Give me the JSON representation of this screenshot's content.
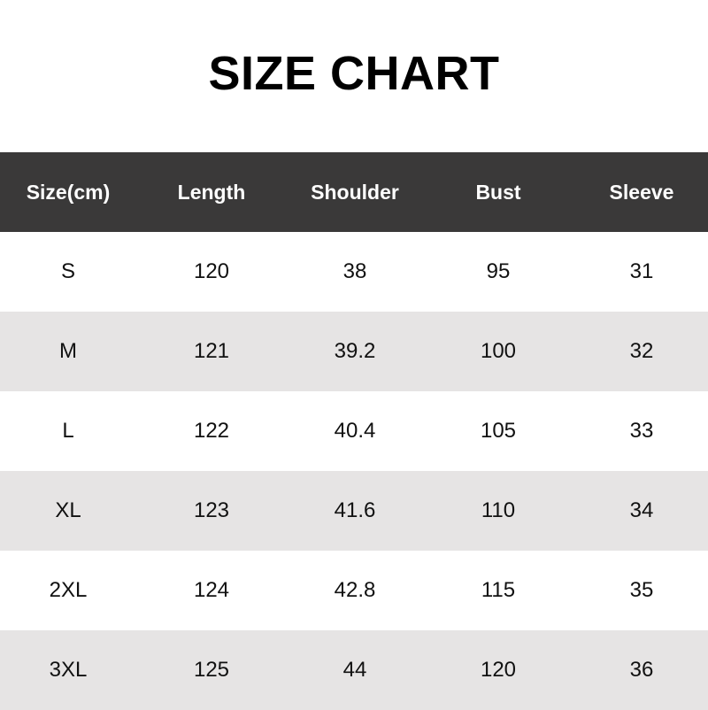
{
  "title": "SIZE CHART",
  "colors": {
    "header_bg": "#3a3939",
    "header_text": "#ffffff",
    "stripe": "#e6e4e4"
  },
  "headers": [
    "Size(cm)",
    "Length",
    "Shoulder",
    "Bust",
    "Sleeve"
  ],
  "rows": [
    [
      "S",
      "120",
      "38",
      "95",
      "31"
    ],
    [
      "M",
      "121",
      "39.2",
      "100",
      "32"
    ],
    [
      "L",
      "122",
      "40.4",
      "105",
      "33"
    ],
    [
      "XL",
      "123",
      "41.6",
      "110",
      "34"
    ],
    [
      "2XL",
      "124",
      "42.8",
      "115",
      "35"
    ],
    [
      "3XL",
      "125",
      "44",
      "120",
      "36"
    ]
  ]
}
